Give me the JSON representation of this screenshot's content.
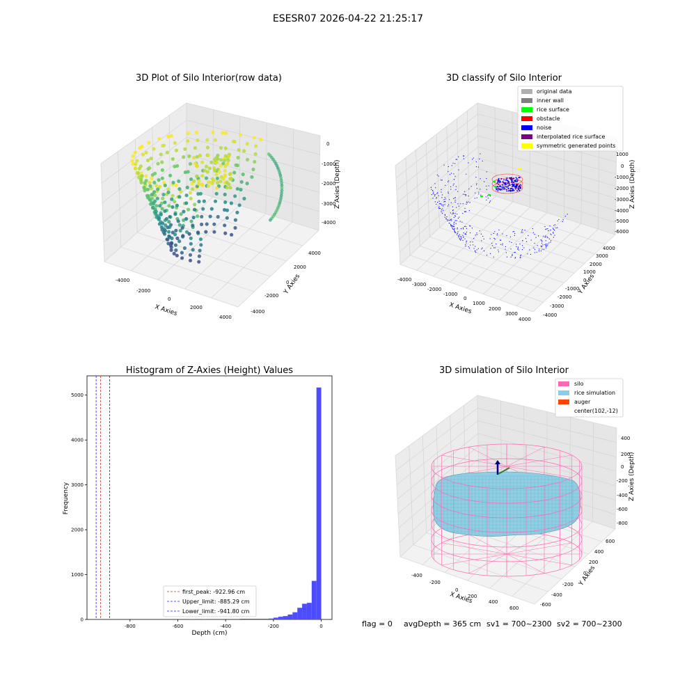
{
  "figure": {
    "suptitle": "ESESR07 2026-04-22 21:25:17",
    "status": {
      "flag": "flag = 0",
      "avg_depth": "avgDepth = 365 cm",
      "sv1": "sv1 = 700~2300",
      "sv2": "sv2 = 700~2300"
    }
  },
  "chart_data": [
    {
      "type": "scatter",
      "projection": "3d",
      "title": "3D Plot of Silo Interior(row data)",
      "xlabel": "X Axies",
      "ylabel": "Y Axies",
      "zlabel": "Z Axies (Depth)",
      "xticks": [
        "-4000",
        "-2000",
        "0",
        "2000",
        "4000"
      ],
      "yticks": [
        "-4000",
        "-2000",
        "0",
        "2000",
        "4000"
      ],
      "zticks": [
        "0",
        "-1000",
        "-2000",
        "-3000",
        "-4000"
      ],
      "xlim": [
        -4500,
        4500
      ],
      "ylim": [
        -4500,
        4500
      ],
      "zlim": [
        -4600,
        200
      ],
      "colormap": "viridis (color by depth)",
      "grid": true
    },
    {
      "type": "scatter",
      "projection": "3d",
      "title": "3D classify of Silo Interior",
      "xlabel": "X Axies",
      "ylabel": "Y Axies",
      "zlabel": "Z Axies (Depth)",
      "xticks": [
        "-4000",
        "-3000",
        "-2000",
        "-1000",
        "0",
        "1000",
        "2000",
        "3000",
        "4000"
      ],
      "yticks": [
        "-4000",
        "-3000",
        "-2000",
        "-1000",
        "0",
        "1000",
        "2000",
        "3000",
        "4000"
      ],
      "zticks": [
        "1000",
        "0",
        "-1000",
        "-2000",
        "-3000",
        "-4000",
        "-5000",
        "-6000"
      ],
      "xlim": [
        -4500,
        4500
      ],
      "ylim": [
        -4500,
        4500
      ],
      "zlim": [
        -6700,
        1300
      ],
      "legend_position": "upper right",
      "legend": [
        {
          "label": "original data",
          "color": "#b0b0b0"
        },
        {
          "label": "inner wall",
          "color": "#808080"
        },
        {
          "label": "rice surface",
          "color": "#00ff00"
        },
        {
          "label": "obstacle",
          "color": "#ff0000"
        },
        {
          "label": "noise",
          "color": "#0000ff"
        },
        {
          "label": "interpolated rice surface",
          "color": "#800080"
        },
        {
          "label": "symmetric generated points",
          "color": "#ffff00"
        }
      ]
    },
    {
      "type": "histogram",
      "title": "Histogram of Z-Axies (Height) Values",
      "xlabel": "Depth (cm)",
      "ylabel": "Frequency",
      "xticks": [
        "-800",
        "-600",
        "-400",
        "-200",
        "0"
      ],
      "yticks": [
        "0",
        "1000",
        "2000",
        "3000",
        "4000",
        "5000"
      ],
      "xlim": [
        -980,
        45
      ],
      "ylim": [
        0,
        5430
      ],
      "bar_color": "#4d4dff",
      "bins": [
        {
          "x0": -550,
          "x1": -530,
          "count": 4
        },
        {
          "x0": -500,
          "x1": -480,
          "count": 5
        },
        {
          "x0": -340,
          "x1": -220,
          "count": 15
        },
        {
          "x0": -220,
          "x1": -200,
          "count": 20
        },
        {
          "x0": -200,
          "x1": -180,
          "count": 40
        },
        {
          "x0": -180,
          "x1": -160,
          "count": 60
        },
        {
          "x0": -160,
          "x1": -140,
          "count": 75
        },
        {
          "x0": -140,
          "x1": -120,
          "count": 110
        },
        {
          "x0": -120,
          "x1": -100,
          "count": 160
        },
        {
          "x0": -100,
          "x1": -80,
          "count": 260
        },
        {
          "x0": -80,
          "x1": -60,
          "count": 350
        },
        {
          "x0": -60,
          "x1": -40,
          "count": 370
        },
        {
          "x0": -40,
          "x1": -20,
          "count": 860
        },
        {
          "x0": -20,
          "x1": 0,
          "count": 5170
        }
      ],
      "vlines": [
        {
          "label": "first_peak: -922.96 cm",
          "value": -922.96,
          "color": "#cc3333"
        },
        {
          "label": "Upper_limit: -885.29 cm",
          "value": -885.29,
          "color": "#1a1aff"
        },
        {
          "label": "Lower_limit: -941.80 cm",
          "value": -941.8,
          "color": "#1a1aff"
        }
      ],
      "legend_position": "lower center"
    },
    {
      "type": "surface",
      "projection": "3d",
      "title": "3D simulation of Silo Interior",
      "xlabel": "X Axies",
      "ylabel": "Y Axies",
      "zlabel": "Z Axies (Depth)",
      "xticks": [
        "-400",
        "-200",
        "0",
        "200",
        "400",
        "600"
      ],
      "yticks": [
        "-600",
        "-400",
        "-200",
        "0",
        "200",
        "400",
        "600"
      ],
      "zticks": [
        "400",
        "200",
        "0",
        "-200",
        "-400",
        "-600",
        "-800"
      ],
      "xlim": [
        -550,
        750
      ],
      "ylim": [
        -750,
        750
      ],
      "zlim": [
        -950,
        520
      ],
      "legend_position": "upper right",
      "legend": [
        {
          "label": "silo",
          "color": "#ff69b4"
        },
        {
          "label": "rice simulation",
          "color": "#87ceeb"
        },
        {
          "label": "auger",
          "color": "#ff4500"
        },
        {
          "label": "center(102,-12)",
          "color": "#ffffff"
        }
      ]
    }
  ]
}
